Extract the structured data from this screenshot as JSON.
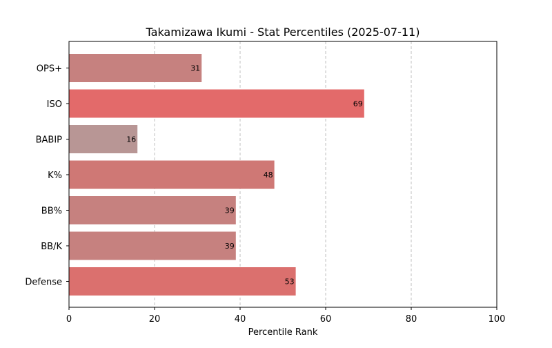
{
  "chart_data": {
    "type": "bar",
    "orientation": "horizontal",
    "title": "Takamizawa Ikumi - Stat Percentiles (2025-07-11)",
    "xlabel": "Percentile Rank",
    "ylabel": "",
    "xlim": [
      0,
      100
    ],
    "x_ticks": [
      0,
      20,
      40,
      60,
      80,
      100
    ],
    "grid": "x-axis dashed",
    "categories": [
      "OPS+",
      "ISO",
      "BABIP",
      "K%",
      "BB%",
      "BB/K",
      "Defense"
    ],
    "values": [
      31,
      69,
      16,
      48,
      39,
      39,
      53
    ],
    "colors": [
      "#c6817f",
      "#e36a6a",
      "#b89695",
      "#cf7875",
      "#c6817f",
      "#c6817f",
      "#db706e"
    ]
  }
}
